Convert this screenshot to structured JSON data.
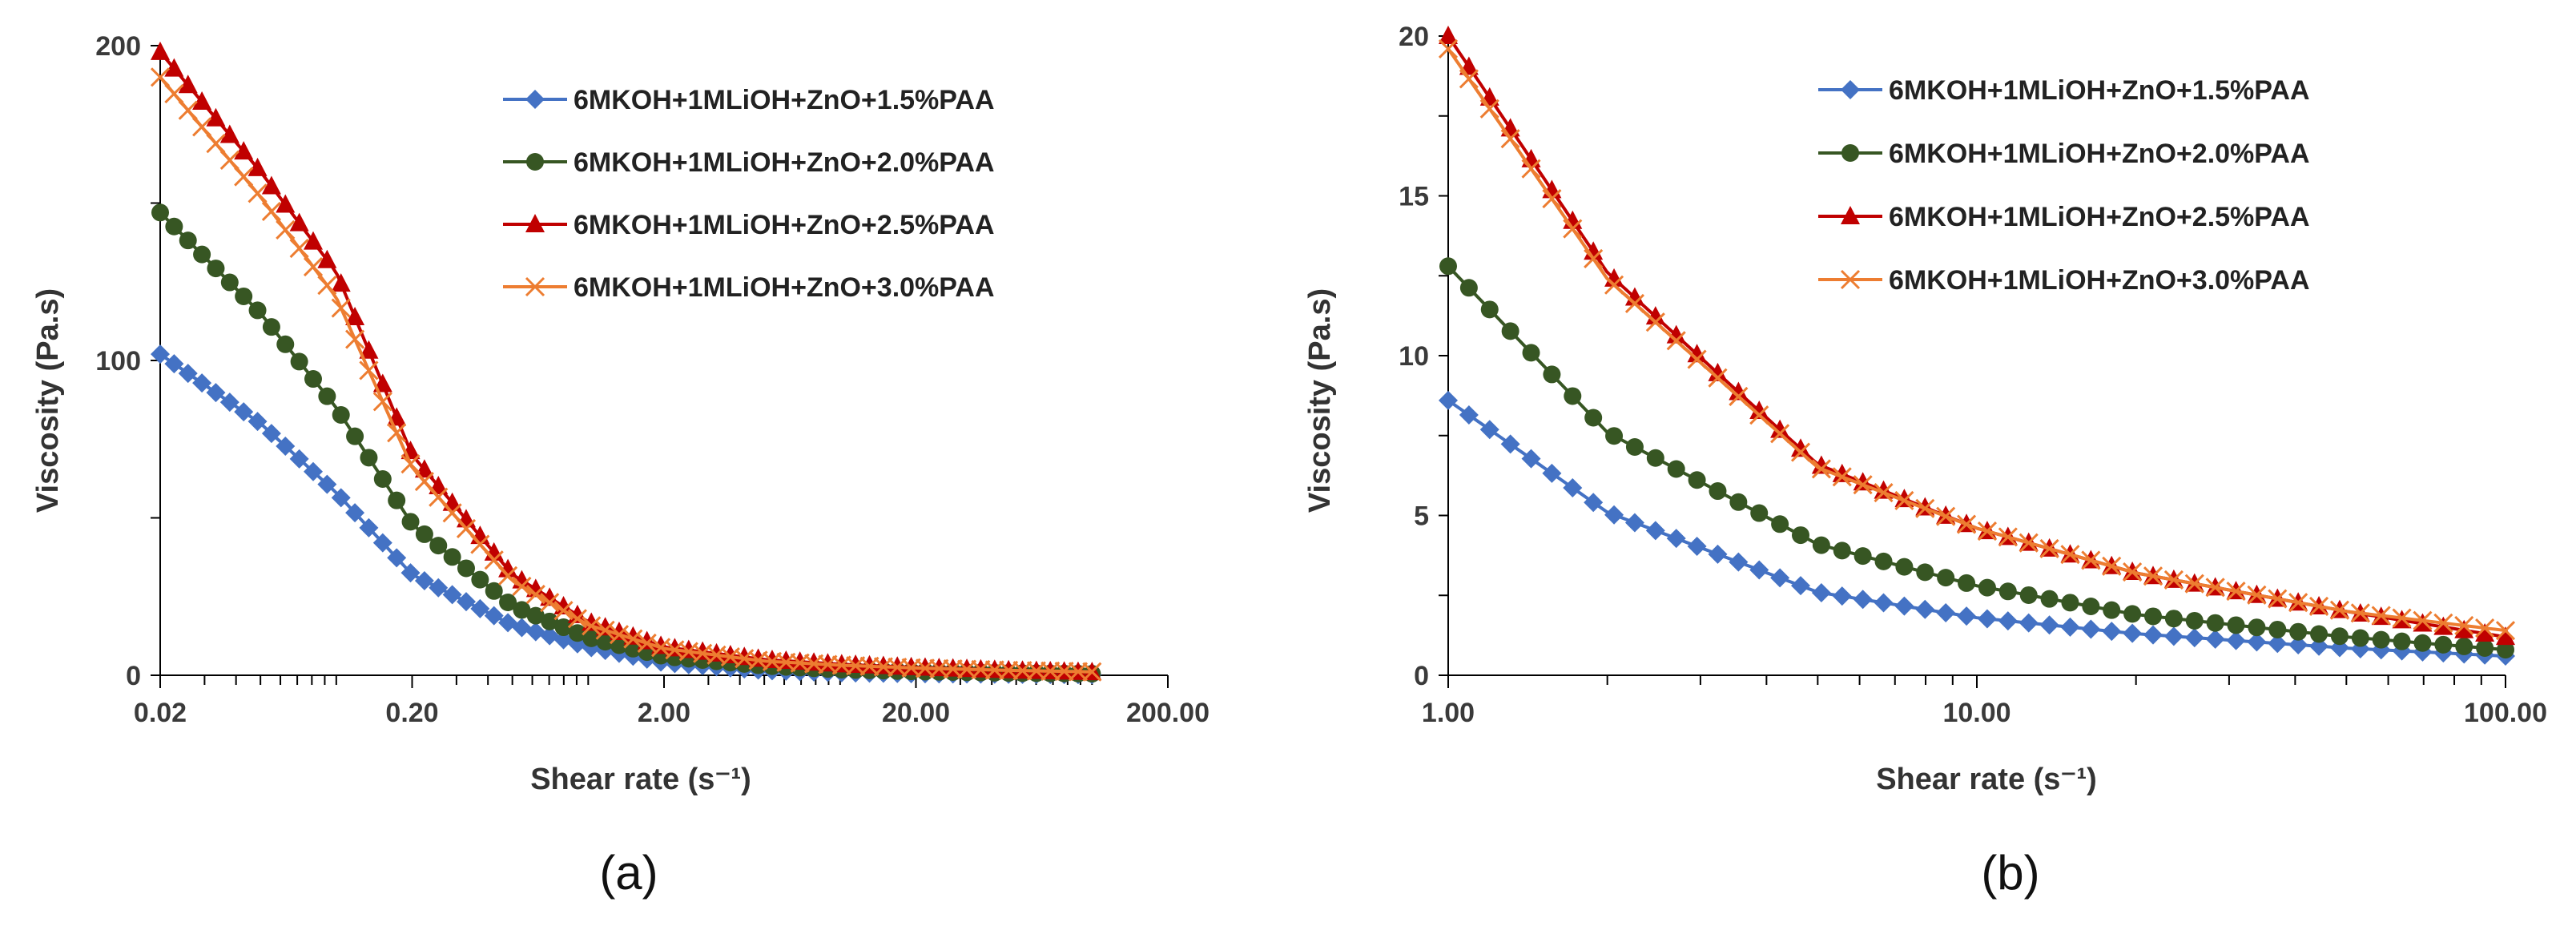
{
  "chart_data": [
    {
      "type": "scatter",
      "panel_label": "(a)",
      "xscale": "log",
      "xlim": [
        0.02,
        200
      ],
      "ylim": [
        0,
        200
      ],
      "xticks": [
        0.02,
        0.2,
        2,
        20,
        200
      ],
      "xtick_labels": [
        "0.02",
        "0.20",
        "2.00",
        "20.00",
        "200.00"
      ],
      "yticks": [
        0,
        100,
        200
      ],
      "ytick_labels": [
        "0",
        "100",
        "200"
      ],
      "xlabel": "Shear rate (s⁻¹)",
      "ylabel": "Viscosity (Pa.s)",
      "legend_position": "top-right",
      "series": [
        {
          "name": "6MKOH+1MLiOH+ZnO+1.5%PAA",
          "color": "#4472C4",
          "marker": "diamond",
          "x": [
            0.02,
            0.05,
            0.1,
            0.2,
            0.5,
            1,
            2,
            5,
            10,
            20,
            50,
            100
          ],
          "y": [
            102,
            80,
            58,
            32,
            16,
            9,
            4,
            1.5,
            0.8,
            0.5,
            0.3,
            0.2
          ]
        },
        {
          "name": "6MKOH+1MLiOH+ZnO+2.0%PAA",
          "color": "#375623",
          "marker": "circle",
          "x": [
            0.02,
            0.05,
            0.1,
            0.2,
            0.5,
            1,
            2,
            5,
            10,
            20,
            50,
            100
          ],
          "y": [
            147,
            115,
            85,
            48,
            22,
            12,
            6,
            3,
            1.8,
            1.2,
            0.7,
            0.5
          ]
        },
        {
          "name": "6MKOH+1MLiOH+ZnO+2.5%PAA",
          "color": "#C00000",
          "marker": "triangle",
          "x": [
            0.02,
            0.05,
            0.1,
            0.2,
            0.5,
            1,
            2,
            5,
            10,
            20,
            50,
            100
          ],
          "y": [
            198,
            160,
            128,
            70,
            32,
            17,
            9,
            5,
            3.5,
            2.5,
            1.5,
            1.0
          ]
        },
        {
          "name": "6MKOH+1MLiOH+ZnO+3.0%PAA",
          "color": "#ED7D31",
          "marker": "cross",
          "x": [
            0.02,
            0.05,
            0.1,
            0.2,
            0.5,
            1,
            2,
            5,
            10,
            20,
            50,
            100
          ],
          "y": [
            190,
            152,
            120,
            66,
            30,
            16,
            8.5,
            4.5,
            3.2,
            2.3,
            1.5,
            1.1
          ]
        }
      ]
    },
    {
      "type": "scatter",
      "panel_label": "(b)",
      "xscale": "log",
      "xlim": [
        1,
        100
      ],
      "ylim": [
        0,
        20
      ],
      "xticks": [
        1,
        10,
        100
      ],
      "xtick_labels": [
        "1.00",
        "10.00",
        "100.00"
      ],
      "yticks": [
        0,
        5,
        10,
        15,
        20
      ],
      "ytick_labels": [
        "0",
        "5",
        "10",
        "15",
        "20"
      ],
      "xlabel": "Shear rate (s⁻¹)",
      "ylabel": "Viscosity (Pa.s)",
      "legend_position": "top-right",
      "series": [
        {
          "name": "6MKOH+1MLiOH+ZnO+1.5%PAA",
          "color": "#4472C4",
          "marker": "diamond",
          "x": [
            1,
            2,
            5,
            10,
            20,
            50,
            100
          ],
          "y": [
            8.6,
            5.1,
            2.6,
            1.8,
            1.3,
            0.85,
            0.6
          ]
        },
        {
          "name": "6MKOH+1MLiOH+ZnO+2.0%PAA",
          "color": "#375623",
          "marker": "circle",
          "x": [
            1,
            2,
            5,
            10,
            20,
            50,
            100
          ],
          "y": [
            12.8,
            7.6,
            4.1,
            2.8,
            1.9,
            1.2,
            0.8
          ]
        },
        {
          "name": "6MKOH+1MLiOH+ZnO+2.5%PAA",
          "color": "#C00000",
          "marker": "triangle",
          "x": [
            1,
            2,
            5,
            10,
            20,
            50,
            100
          ],
          "y": [
            20.0,
            12.6,
            6.6,
            4.6,
            3.2,
            2.0,
            1.2
          ]
        },
        {
          "name": "6MKOH+1MLiOH+ZnO+3.0%PAA",
          "color": "#ED7D31",
          "marker": "cross",
          "x": [
            1,
            2,
            5,
            10,
            20,
            50,
            100
          ],
          "y": [
            19.6,
            12.4,
            6.5,
            4.6,
            3.2,
            2.0,
            1.4
          ]
        }
      ]
    }
  ]
}
